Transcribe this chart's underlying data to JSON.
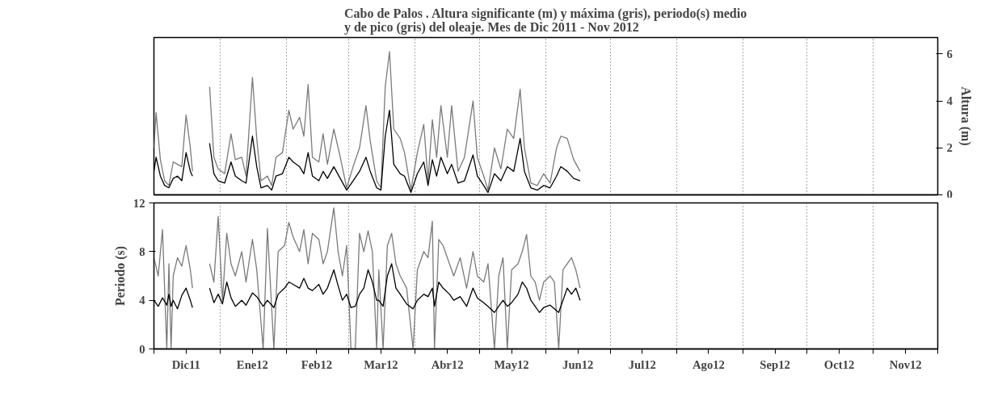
{
  "chart_data": [
    {
      "type": "line",
      "title": "Cabo de Palos . Altura significante (m) y máxima (gris), periodo(s) medio\ny de pico (gris) del oleaje. Mes de Dic 2011 - Nov 2012",
      "y2label": "Altura (m)",
      "tick_labels": "y",
      "grid": "x",
      "x": [
        "2011-12-01",
        "2011-12-02",
        "2011-12-04",
        "2011-12-06",
        "2011-12-08",
        "2011-12-10",
        "2011-12-12",
        "2011-12-14",
        "2011-12-16",
        "2011-12-18",
        "2011-12-19",
        "2011-12-23",
        "2011-12-27",
        "2011-12-29",
        "2011-12-31",
        "2012-01-03",
        "2012-01-06",
        "2012-01-08",
        "2012-01-11",
        "2012-01-13",
        "2012-01-16",
        "2012-01-18",
        "2012-01-20",
        "2012-01-23",
        "2012-01-25",
        "2012-01-27",
        "2012-01-30",
        "2012-02-02",
        "2012-02-04",
        "2012-02-07",
        "2012-02-09",
        "2012-02-11",
        "2012-02-13",
        "2012-02-16",
        "2012-02-18",
        "2012-02-20",
        "2012-02-23",
        "2012-02-26",
        "2012-02-29",
        "2012-03-03",
        "2012-03-06",
        "2012-03-09",
        "2012-03-11",
        "2012-03-14",
        "2012-03-16",
        "2012-03-18",
        "2012-03-20",
        "2012-03-22",
        "2012-03-25",
        "2012-03-27",
        "2012-03-30",
        "2012-04-02",
        "2012-04-05",
        "2012-04-07",
        "2012-04-09",
        "2012-04-11",
        "2012-04-13",
        "2012-04-16",
        "2012-04-18",
        "2012-04-21",
        "2012-04-24",
        "2012-04-28",
        "2012-04-30",
        "2012-05-03",
        "2012-05-05",
        "2012-05-08",
        "2012-05-11",
        "2012-05-14",
        "2012-05-17",
        "2012-05-20",
        "2012-05-22",
        "2012-05-25",
        "2012-05-28",
        "2012-05-31",
        "2012-06-03",
        "2012-06-06",
        "2012-06-08",
        "2012-06-11",
        "2012-06-14",
        "2012-06-17"
      ],
      "series": [
        {
          "color": "#7a7a7a",
          "axis": "y2",
          "values": [
            2.0,
            3.5,
            1.5,
            0.6,
            0.4,
            1.4,
            1.3,
            1.2,
            3.4,
            2.0,
            1.0,
            null,
            4.6,
            1.6,
            1.1,
            0.9,
            2.6,
            1.5,
            1.6,
            0.8,
            5.0,
            2.4,
            0.6,
            0.8,
            0.4,
            1.6,
            1.8,
            3.6,
            2.8,
            3.3,
            2.5,
            4.7,
            1.6,
            1.4,
            2.6,
            1.3,
            2.8,
            1.6,
            0.3,
            1.2,
            2.0,
            3.8,
            2.3,
            0.6,
            0.3,
            4.6,
            6.1,
            2.8,
            2.4,
            1.8,
            0.2,
            1.8,
            3.0,
            0.6,
            3.2,
            1.6,
            3.8,
            1.6,
            3.8,
            1.0,
            1.6,
            4.0,
            1.6,
            0.8,
            0.2,
            2.0,
            1.1,
            2.8,
            2.4,
            4.5,
            2.0,
            0.5,
            0.4,
            0.9,
            0.5,
            2.0,
            2.5,
            2.4,
            1.5,
            1.0
          ]
        },
        {
          "color": "#000000",
          "axis": "y2",
          "values": [
            1.0,
            1.6,
            0.8,
            0.4,
            0.3,
            0.7,
            0.8,
            0.6,
            1.8,
            1.0,
            0.8,
            null,
            2.2,
            0.9,
            0.6,
            0.5,
            1.4,
            0.8,
            0.6,
            0.5,
            2.5,
            1.2,
            0.3,
            0.4,
            0.2,
            0.8,
            0.9,
            1.6,
            1.4,
            1.2,
            0.9,
            1.8,
            0.8,
            0.6,
            1.0,
            0.7,
            1.2,
            0.7,
            0.2,
            0.6,
            1.0,
            1.6,
            1.0,
            0.3,
            0.2,
            2.5,
            3.6,
            1.3,
            0.9,
            0.8,
            0.1,
            0.9,
            1.4,
            0.4,
            1.5,
            0.8,
            1.6,
            0.9,
            1.3,
            0.5,
            0.6,
            1.7,
            0.8,
            0.4,
            0.1,
            0.9,
            0.6,
            1.2,
            1.0,
            2.4,
            1.0,
            0.3,
            0.2,
            0.4,
            0.3,
            0.8,
            1.2,
            1.0,
            0.7,
            0.6
          ]
        }
      ],
      "xlim": [
        "2011-12-01",
        "2012-12-01"
      ],
      "xticks": [
        {
          "value": "2011-12-01",
          "label": null
        },
        {
          "value": "2012-01-01",
          "label": null
        },
        {
          "value": "2012-02-01",
          "label": null
        },
        {
          "value": "2012-03-01",
          "label": null
        },
        {
          "value": "2012-04-01",
          "label": null
        },
        {
          "value": "2012-05-01",
          "label": null
        },
        {
          "value": "2012-06-01",
          "label": null
        },
        {
          "value": "2012-07-01",
          "label": null
        },
        {
          "value": "2012-08-01",
          "label": null
        },
        {
          "value": "2012-09-01",
          "label": null
        },
        {
          "value": "2012-10-01",
          "label": null
        },
        {
          "value": "2012-11-01",
          "label": null
        },
        {
          "value": "2012-12-01",
          "label": null
        }
      ],
      "y2lim": [
        0,
        6.7
      ],
      "y2ticks": [
        0,
        2,
        4,
        6
      ]
    },
    {
      "type": "line",
      "ylabel": "Periodo (s)",
      "grid": "x",
      "x": [
        "2011-12-01",
        "2011-12-03",
        "2011-12-05",
        "2011-12-07",
        "2011-12-08",
        "2011-12-09",
        "2011-12-10",
        "2011-12-12",
        "2011-12-14",
        "2011-12-16",
        "2011-12-18",
        "2011-12-19",
        "2011-12-23",
        "2011-12-27",
        "2011-12-29",
        "2011-12-31",
        "2012-01-02",
        "2012-01-04",
        "2012-01-06",
        "2012-01-08",
        "2012-01-11",
        "2012-01-13",
        "2012-01-16",
        "2012-01-18",
        "2012-01-21",
        "2012-01-23",
        "2012-01-26",
        "2012-01-28",
        "2012-01-31",
        "2012-02-02",
        "2012-02-04",
        "2012-02-07",
        "2012-02-09",
        "2012-02-11",
        "2012-02-13",
        "2012-02-16",
        "2012-02-18",
        "2012-02-20",
        "2012-02-23",
        "2012-02-25",
        "2012-02-27",
        "2012-02-29",
        "2012-03-02",
        "2012-03-04",
        "2012-03-06",
        "2012-03-08",
        "2012-03-10",
        "2012-03-12",
        "2012-03-14",
        "2012-03-15",
        "2012-03-17",
        "2012-03-19",
        "2012-03-21",
        "2012-03-23",
        "2012-03-25",
        "2012-03-28",
        "2012-03-31",
        "2012-04-02",
        "2012-04-05",
        "2012-04-07",
        "2012-04-09",
        "2012-04-10",
        "2012-04-12",
        "2012-04-14",
        "2012-04-17",
        "2012-04-19",
        "2012-04-22",
        "2012-04-25",
        "2012-04-28",
        "2012-04-30",
        "2012-05-03",
        "2012-05-05",
        "2012-05-08",
        "2012-05-10",
        "2012-05-12",
        "2012-05-14",
        "2012-05-16",
        "2012-05-19",
        "2012-05-21",
        "2012-05-23",
        "2012-05-25",
        "2012-05-27",
        "2012-05-29",
        "2012-05-31",
        "2012-06-03",
        "2012-06-05",
        "2012-06-07",
        "2012-06-09",
        "2012-06-11",
        "2012-06-13",
        "2012-06-15",
        "2012-06-17"
      ],
      "series": [
        {
          "color": "#7a7a7a",
          "values": [
            7.5,
            6.0,
            9.8,
            0.0,
            7.0,
            0.0,
            6.0,
            7.5,
            6.8,
            8.5,
            6.5,
            5.0,
            null,
            7.0,
            5.5,
            10.9,
            4.0,
            9.5,
            7.0,
            6.0,
            8.0,
            5.5,
            9.0,
            6.5,
            0.0,
            9.9,
            0.0,
            8.0,
            8.5,
            10.4,
            9.2,
            8.0,
            9.8,
            7.0,
            9.5,
            9.0,
            7.0,
            8.0,
            11.6,
            8.0,
            6.0,
            8.5,
            0.0,
            0.0,
            9.5,
            8.0,
            9.7,
            8.0,
            0.0,
            6.5,
            0.0,
            8.5,
            9.5,
            7.0,
            6.0,
            5.0,
            0.0,
            6.5,
            8.0,
            7.5,
            10.5,
            0.0,
            9.0,
            8.5,
            7.0,
            6.0,
            7.5,
            5.0,
            8.0,
            6.0,
            5.5,
            7.0,
            0.0,
            6.0,
            7.5,
            0.0,
            6.5,
            7.0,
            8.0,
            9.4,
            6.0,
            5.5,
            4.0,
            5.5,
            6.0,
            5.5,
            0.0,
            6.5,
            7.0,
            7.5,
            6.5,
            5.0
          ]
        },
        {
          "color": "#000000",
          "values": [
            4.0,
            3.5,
            4.2,
            3.6,
            4.5,
            3.5,
            4.0,
            3.3,
            4.4,
            5.0,
            4.0,
            3.4,
            null,
            5.0,
            3.8,
            4.5,
            3.7,
            5.5,
            4.2,
            3.5,
            4.0,
            3.6,
            4.6,
            4.3,
            3.5,
            4.0,
            3.4,
            4.5,
            5.0,
            5.5,
            5.3,
            5.0,
            5.8,
            5.0,
            4.8,
            5.3,
            4.5,
            5.0,
            6.5,
            5.2,
            4.0,
            4.5,
            3.4,
            3.5,
            4.5,
            5.0,
            6.5,
            5.5,
            4.0,
            4.0,
            3.5,
            6.0,
            7.0,
            5.0,
            4.5,
            3.7,
            3.3,
            4.0,
            4.5,
            4.3,
            5.0,
            3.5,
            5.5,
            5.0,
            4.5,
            4.0,
            4.3,
            3.5,
            5.0,
            4.2,
            3.8,
            3.5,
            3.0,
            3.5,
            4.0,
            3.5,
            3.8,
            4.5,
            5.5,
            5.0,
            4.0,
            3.5,
            3.0,
            3.4,
            3.6,
            3.3,
            3.0,
            4.0,
            5.0,
            4.5,
            5.0,
            4.0
          ]
        }
      ],
      "xlim": [
        "2011-12-01",
        "2012-12-01"
      ],
      "xticks": [
        {
          "value": "2011-12-01",
          "label": null
        },
        {
          "value": "2011-12-16",
          "label": "Dic11"
        },
        {
          "value": "2012-01-01",
          "label": null
        },
        {
          "value": "2012-01-16",
          "label": "Ene12"
        },
        {
          "value": "2012-02-01",
          "label": null
        },
        {
          "value": "2012-02-15",
          "label": "Feb12"
        },
        {
          "value": "2012-03-01",
          "label": null
        },
        {
          "value": "2012-03-16",
          "label": "Mar12"
        },
        {
          "value": "2012-04-01",
          "label": null
        },
        {
          "value": "2012-04-16",
          "label": "Abr12"
        },
        {
          "value": "2012-05-01",
          "label": null
        },
        {
          "value": "2012-05-16",
          "label": "May12"
        },
        {
          "value": "2012-06-01",
          "label": null
        },
        {
          "value": "2012-06-16",
          "label": "Jun12"
        },
        {
          "value": "2012-07-01",
          "label": null
        },
        {
          "value": "2012-07-16",
          "label": "Jul12"
        },
        {
          "value": "2012-08-01",
          "label": null
        },
        {
          "value": "2012-08-16",
          "label": "Ago12"
        },
        {
          "value": "2012-09-01",
          "label": null
        },
        {
          "value": "2012-09-16",
          "label": "Sep12"
        },
        {
          "value": "2012-10-01",
          "label": null
        },
        {
          "value": "2012-10-16",
          "label": "Oct12"
        },
        {
          "value": "2012-11-01",
          "label": null
        },
        {
          "value": "2012-11-16",
          "label": "Nov12"
        },
        {
          "value": "2012-12-01",
          "label": null
        }
      ],
      "ylim": [
        0,
        12
      ],
      "yticks": [
        0,
        4,
        8,
        12
      ]
    }
  ]
}
